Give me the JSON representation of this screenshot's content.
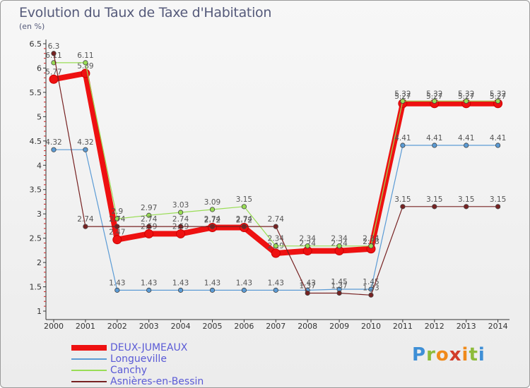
{
  "chart_data": {
    "type": "line",
    "title": "Evolution du Taux de Taxe d'Habitation",
    "subtitle": "(en %)",
    "x": [
      "2000",
      "2001",
      "2002",
      "2003",
      "2004",
      "2005",
      "2006",
      "2007",
      "2008",
      "2009",
      "2010",
      "2011",
      "2012",
      "2013",
      "2014"
    ],
    "ylim": [
      1,
      6.5
    ],
    "yticks": [
      1,
      1.5,
      2,
      2.5,
      3,
      3.5,
      4,
      4.5,
      5,
      5.5,
      6,
      6.5
    ],
    "ytick_labels": [
      "1",
      "1.5",
      "2",
      "2.5",
      "3",
      "3.5",
      "4",
      "4.5",
      "5",
      "5.5",
      "6",
      "6.5"
    ],
    "grid": false,
    "legend_position": "bottom-left",
    "series": [
      {
        "name": "DEUX-JUMEAUX",
        "color": "#ee1111",
        "emphasis": true,
        "values": [
          5.77,
          5.89,
          2.47,
          2.59,
          2.59,
          2.72,
          2.72,
          2.19,
          2.24,
          2.24,
          2.28,
          5.27,
          5.27,
          5.27,
          5.27
        ],
        "labels": [
          "5.77",
          "5.89",
          "2.47",
          "2.59",
          "2.59",
          "2.72",
          "2.72",
          "2.19",
          "2.24",
          "2.24",
          "2.28",
          "5.27",
          "5.27",
          "5.27",
          "5.27"
        ]
      },
      {
        "name": "Longueville",
        "color": "#5b9bd5",
        "values": [
          4.32,
          4.32,
          1.43,
          1.43,
          1.43,
          1.43,
          1.43,
          1.43,
          1.43,
          1.45,
          1.45,
          4.41,
          4.41,
          4.41,
          4.41
        ],
        "labels": [
          "4.32",
          "4.32",
          "1.43",
          "1.43",
          "1.43",
          "1.43",
          "1.43",
          "1.43",
          "1.43",
          "1.45",
          "1.45",
          "4.41",
          "4.41",
          "4.41",
          "4.41"
        ]
      },
      {
        "name": "Canchy",
        "color": "#99dd55",
        "values": [
          6.11,
          6.11,
          2.9,
          2.97,
          3.03,
          3.09,
          3.15,
          2.34,
          2.34,
          2.34,
          2.34,
          5.32,
          5.32,
          5.32,
          5.32
        ],
        "labels": [
          "6.11",
          "6.11",
          "2.9",
          "2.97",
          "3.03",
          "3.09",
          "3.15",
          "2.34",
          "2.34",
          "2.34",
          "2.34",
          "5.32",
          "5.32",
          "5.32",
          "5.32"
        ]
      },
      {
        "name": "Asnières-en-Bessin",
        "color": "#772222",
        "values": [
          6.3,
          2.74,
          2.74,
          2.74,
          2.74,
          2.74,
          2.74,
          2.74,
          1.37,
          1.37,
          1.33,
          3.15,
          3.15,
          3.15,
          3.15
        ],
        "labels": [
          "6.3",
          "2.74",
          "2.74",
          "2.74",
          "2.74",
          "2.74",
          "2.74",
          "2.74",
          "1.37",
          "1.37",
          "1.33",
          "3.15",
          "3.15",
          "3.15",
          "3.15"
        ]
      }
    ]
  },
  "branding": {
    "logo_letters": [
      "P",
      "r",
      "o",
      "x",
      "i",
      "t",
      "i"
    ],
    "logo_colors": [
      "lg1",
      "lg2",
      "lg3",
      "lg4",
      "lg3",
      "lg2",
      "lg1"
    ]
  }
}
